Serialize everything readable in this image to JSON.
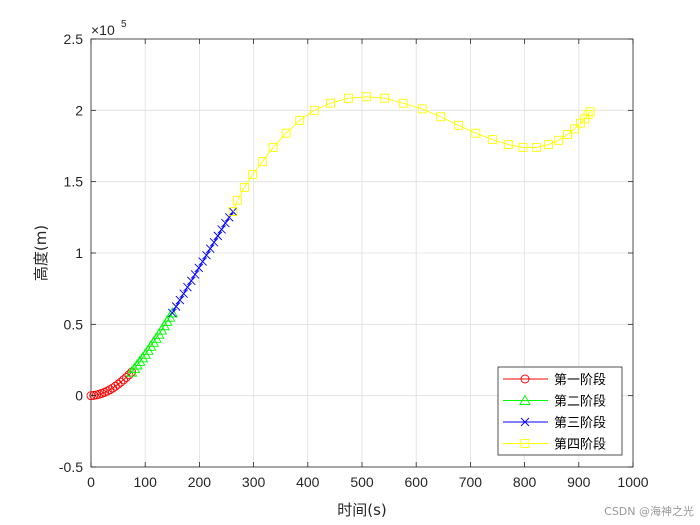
{
  "chart_data": {
    "type": "line",
    "xlabel": "时间(s)",
    "ylabel": "高度(m)",
    "y_exponent_label": "×10",
    "y_exponent": "5",
    "xlim": [
      0,
      1000
    ],
    "ylim": [
      -0.5,
      2.5
    ],
    "x_ticks": [
      0,
      100,
      200,
      300,
      400,
      500,
      600,
      700,
      800,
      900,
      1000
    ],
    "y_ticks": [
      -0.5,
      0,
      0.5,
      1,
      1.5,
      2,
      2.5
    ],
    "x_tick_labels": [
      "0",
      "100",
      "200",
      "300",
      "400",
      "500",
      "600",
      "700",
      "800",
      "900",
      "1000"
    ],
    "y_tick_labels": [
      "-0.5",
      "0",
      "0.5",
      "1",
      "1.5",
      "2",
      "2.5"
    ],
    "grid": true,
    "legend_position": "bottom-right",
    "series": [
      {
        "name": "第一阶段",
        "color": "#ff0000",
        "marker": "circle",
        "x": [
          0,
          5,
          10,
          15,
          20,
          25,
          30,
          35,
          40,
          45,
          50,
          55,
          60,
          65,
          70,
          75
        ],
        "y": [
          0,
          0.002,
          0.005,
          0.01,
          0.016,
          0.023,
          0.032,
          0.042,
          0.053,
          0.066,
          0.08,
          0.095,
          0.111,
          0.128,
          0.146,
          0.165
        ]
      },
      {
        "name": "第二阶段",
        "color": "#00ff00",
        "marker": "triangle",
        "x": [
          75,
          80,
          85,
          90,
          95,
          100,
          105,
          110,
          115,
          120,
          125,
          130,
          135,
          140,
          145,
          150
        ],
        "y": [
          0.165,
          0.19,
          0.215,
          0.24,
          0.265,
          0.29,
          0.318,
          0.346,
          0.374,
          0.402,
          0.43,
          0.46,
          0.49,
          0.52,
          0.55,
          0.58
        ]
      },
      {
        "name": "第三阶段",
        "color": "#0000ff",
        "marker": "x",
        "x": [
          150,
          157,
          164,
          171,
          178,
          185,
          192,
          199,
          206,
          213,
          220,
          227,
          234,
          241,
          248,
          255,
          262
        ],
        "y": [
          0.58,
          0.625,
          0.67,
          0.715,
          0.76,
          0.805,
          0.85,
          0.895,
          0.94,
          0.985,
          1.03,
          1.075,
          1.12,
          1.165,
          1.21,
          1.25,
          1.29
        ]
      },
      {
        "name": "第四阶段",
        "color": "#ffff00",
        "marker": "square",
        "x": [
          262,
          270,
          283,
          298,
          316,
          336,
          360,
          385,
          412,
          442,
          475,
          508,
          542,
          576,
          611,
          645,
          678,
          710,
          741,
          770,
          797,
          822,
          844,
          863,
          879,
          892,
          903,
          911,
          917,
          921
        ],
        "y": [
          1.29,
          1.37,
          1.46,
          1.55,
          1.64,
          1.74,
          1.84,
          1.93,
          2.0,
          2.05,
          2.085,
          2.095,
          2.085,
          2.05,
          2.01,
          1.955,
          1.895,
          1.84,
          1.795,
          1.76,
          1.74,
          1.74,
          1.76,
          1.79,
          1.83,
          1.87,
          1.91,
          1.94,
          1.97,
          1.99
        ]
      }
    ]
  },
  "watermark": "CSDN @海神之光"
}
